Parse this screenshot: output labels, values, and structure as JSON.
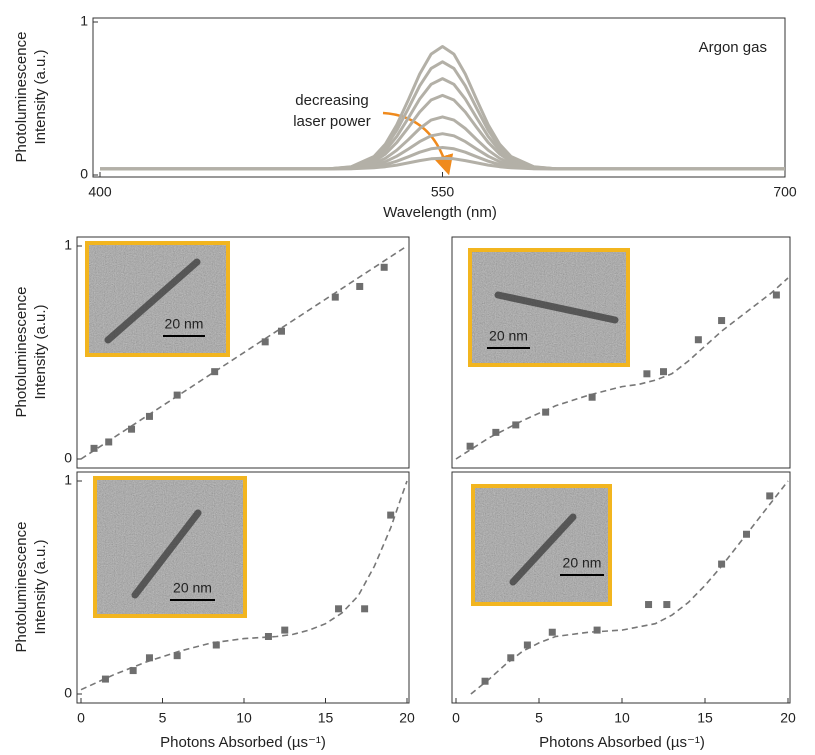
{
  "chart_data": [
    {
      "type": "line",
      "xlabel": "Wavelength (nm)",
      "ylabel": [
        "Photoluminescence",
        "Intensity (a.u.)"
      ],
      "annotation": [
        "decreasing",
        "laser power"
      ],
      "note": "Argon gas",
      "xlim": [
        400,
        700
      ],
      "xticks": [
        400,
        550,
        700
      ],
      "ylim": [
        0,
        1
      ],
      "yticks": [
        0,
        1
      ],
      "x": [
        400,
        500,
        510,
        520,
        525,
        530,
        535,
        540,
        545,
        550,
        555,
        560,
        565,
        570,
        575,
        580,
        590,
        600,
        700
      ],
      "series": [
        {
          "color": "#b3b0a7",
          "values": [
            0.04,
            0.04,
            0.054,
            0.121,
            0.202,
            0.328,
            0.49,
            0.66,
            0.79,
            0.84,
            0.79,
            0.66,
            0.49,
            0.328,
            0.202,
            0.121,
            0.054,
            0.04,
            0.04
          ]
        },
        {
          "color": "#b3b0a7",
          "values": [
            0.04,
            0.04,
            0.052,
            0.111,
            0.182,
            0.292,
            0.434,
            0.583,
            0.697,
            0.74,
            0.697,
            0.583,
            0.434,
            0.292,
            0.182,
            0.111,
            0.052,
            0.04,
            0.04
          ]
        },
        {
          "color": "#b3b0a7",
          "values": [
            0.04,
            0.04,
            0.05,
            0.1,
            0.16,
            0.252,
            0.372,
            0.497,
            0.593,
            0.63,
            0.593,
            0.497,
            0.372,
            0.252,
            0.16,
            0.1,
            0.05,
            0.04,
            0.04
          ]
        },
        {
          "color": "#b3b0a7",
          "values": [
            0.04,
            0.04,
            0.048,
            0.088,
            0.137,
            0.213,
            0.31,
            0.412,
            0.49,
            0.52,
            0.49,
            0.412,
            0.31,
            0.213,
            0.137,
            0.088,
            0.048,
            0.04,
            0.04
          ]
        },
        {
          "color": "#b3b0a7",
          "values": [
            0.04,
            0.04,
            0.046,
            0.074,
            0.109,
            0.162,
            0.231,
            0.304,
            0.359,
            0.38,
            0.359,
            0.304,
            0.231,
            0.162,
            0.109,
            0.074,
            0.046,
            0.04,
            0.04
          ]
        },
        {
          "color": "#b3b0a7",
          "values": [
            0.04,
            0.04,
            0.044,
            0.063,
            0.087,
            0.123,
            0.169,
            0.218,
            0.256,
            0.27,
            0.256,
            0.218,
            0.169,
            0.123,
            0.087,
            0.063,
            0.044,
            0.04,
            0.04
          ]
        },
        {
          "color": "#b3b0a7",
          "values": [
            0.04,
            0.04,
            0.042,
            0.054,
            0.068,
            0.09,
            0.119,
            0.149,
            0.171,
            0.18,
            0.171,
            0.149,
            0.119,
            0.09,
            0.068,
            0.054,
            0.042,
            0.04,
            0.04
          ]
        },
        {
          "color": "#b3b0a7",
          "values": [
            0.04,
            0.04,
            0.041,
            0.047,
            0.054,
            0.065,
            0.079,
            0.094,
            0.106,
            0.11,
            0.106,
            0.094,
            0.079,
            0.065,
            0.054,
            0.047,
            0.041,
            0.04,
            0.04
          ]
        }
      ]
    },
    {
      "type": "scatter",
      "ylabel": [
        "Photoluminescence",
        "Intensity (a.u.)"
      ],
      "inset_label": "20 nm",
      "xlim": [
        0,
        20
      ],
      "ylim": [
        0,
        1
      ],
      "yticks": [
        0,
        1
      ],
      "color": "#6e6e6e",
      "series": [
        {
          "x": [
            0.8,
            1.7,
            3.1,
            4.2,
            5.9,
            8.2,
            11.3,
            12.3,
            15.6,
            17.1,
            18.6
          ],
          "values": [
            0.05,
            0.08,
            0.14,
            0.2,
            0.3,
            0.41,
            0.55,
            0.6,
            0.76,
            0.81,
            0.9
          ]
        }
      ],
      "fit": {
        "x": [
          0,
          20
        ],
        "values": [
          0,
          1
        ]
      }
    },
    {
      "type": "scatter",
      "inset_label": "20 nm",
      "xlim": [
        0,
        20
      ],
      "ylim": [
        0,
        1
      ],
      "color": "#6e6e6e",
      "series": [
        {
          "x": [
            0.85,
            2.4,
            3.6,
            5.4,
            8.2,
            11.5,
            12.5,
            14.6,
            16,
            19.3
          ],
          "values": [
            0.06,
            0.125,
            0.16,
            0.22,
            0.29,
            0.4,
            0.41,
            0.56,
            0.65,
            0.77
          ]
        }
      ],
      "fit": {
        "x": [
          0,
          2,
          4,
          6,
          8,
          10,
          11,
          12,
          13,
          14,
          15,
          16,
          17,
          18,
          19,
          20
        ],
        "values": [
          0,
          0.1,
          0.18,
          0.25,
          0.3,
          0.34,
          0.35,
          0.37,
          0.4,
          0.46,
          0.53,
          0.6,
          0.66,
          0.72,
          0.78,
          0.85
        ]
      }
    },
    {
      "type": "scatter",
      "ylabel": [
        "Photoluminescence",
        "Intensity (a.u.)"
      ],
      "xlabel": "Photons Absorbed (µs⁻¹)",
      "inset_label": "20 nm",
      "xlim": [
        0,
        20
      ],
      "xticks": [
        0,
        5,
        10,
        15,
        20
      ],
      "ylim": [
        0,
        1
      ],
      "yticks": [
        0,
        1
      ],
      "color": "#6e6e6e",
      "series": [
        {
          "x": [
            1.5,
            3.2,
            4.2,
            5.9,
            8.3,
            11.5,
            12.5,
            15.8,
            17.4,
            19
          ],
          "values": [
            0.07,
            0.11,
            0.17,
            0.18,
            0.23,
            0.27,
            0.3,
            0.4,
            0.4,
            0.84
          ]
        }
      ],
      "fit": {
        "x": [
          0,
          2,
          4,
          6,
          8,
          10,
          12,
          13,
          14,
          15,
          16,
          17,
          18,
          19,
          19.5,
          20
        ],
        "values": [
          0.02,
          0.09,
          0.15,
          0.2,
          0.24,
          0.26,
          0.27,
          0.28,
          0.3,
          0.33,
          0.38,
          0.46,
          0.6,
          0.78,
          0.89,
          1
        ]
      }
    },
    {
      "type": "scatter",
      "xlabel": "Photons Absorbed (µs⁻¹)",
      "inset_label": "20 nm",
      "xlim": [
        0,
        20
      ],
      "xticks": [
        0,
        5,
        10,
        15,
        20
      ],
      "ylim": [
        0,
        1
      ],
      "color": "#6e6e6e",
      "series": [
        {
          "x": [
            1.75,
            3.3,
            4.3,
            5.8,
            8.5,
            11.6,
            12.7,
            16,
            17.5,
            18.9
          ],
          "values": [
            0.06,
            0.17,
            0.23,
            0.29,
            0.3,
            0.42,
            0.42,
            0.61,
            0.75,
            0.93
          ]
        }
      ],
      "fit": {
        "x": [
          0.9,
          2,
          3,
          4,
          5,
          6,
          8,
          10,
          12,
          13,
          14,
          15,
          16,
          17,
          18,
          19,
          20
        ],
        "values": [
          0,
          0.07,
          0.14,
          0.2,
          0.24,
          0.27,
          0.29,
          0.3,
          0.33,
          0.37,
          0.43,
          0.51,
          0.6,
          0.7,
          0.8,
          0.9,
          1
        ]
      }
    }
  ]
}
